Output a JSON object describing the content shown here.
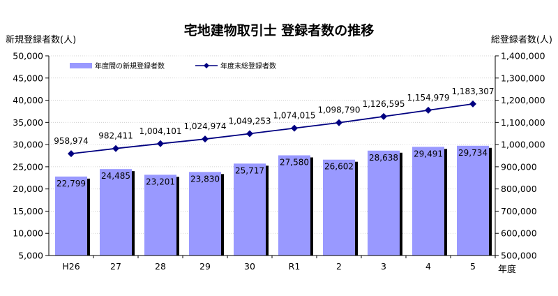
{
  "chart_data": {
    "type": "bar+line",
    "title": "宅地建物取引士 登録者数の推移",
    "ylabel_left": "新規登録者数(人)",
    "ylabel_right": "総登録者数(人)",
    "xlabel": "年度",
    "categories": [
      "H26",
      "27",
      "28",
      "29",
      "30",
      "R1",
      "2",
      "3",
      "4",
      "5"
    ],
    "ylim_left": [
      5000,
      50000
    ],
    "ylim_right": [
      500000,
      1400000
    ],
    "yticks_left": [
      5000,
      10000,
      15000,
      20000,
      25000,
      30000,
      35000,
      40000,
      45000,
      50000
    ],
    "yticks_right": [
      500000,
      600000,
      700000,
      800000,
      900000,
      1000000,
      1100000,
      1200000,
      1300000,
      1400000
    ],
    "grid": true,
    "legend_position": "top-left",
    "series": [
      {
        "name": "年度間の新規登録者数",
        "kind": "bar",
        "axis": "left",
        "color": "#9999ff",
        "values": [
          22799,
          24485,
          23201,
          23830,
          25717,
          27580,
          26602,
          28638,
          29491,
          29734
        ]
      },
      {
        "name": "年度末総登録者数",
        "kind": "line",
        "axis": "right",
        "color": "#000080",
        "values": [
          958974,
          982411,
          1004101,
          1024974,
          1049253,
          1074015,
          1098790,
          1126595,
          1154979,
          1183307
        ]
      }
    ]
  }
}
